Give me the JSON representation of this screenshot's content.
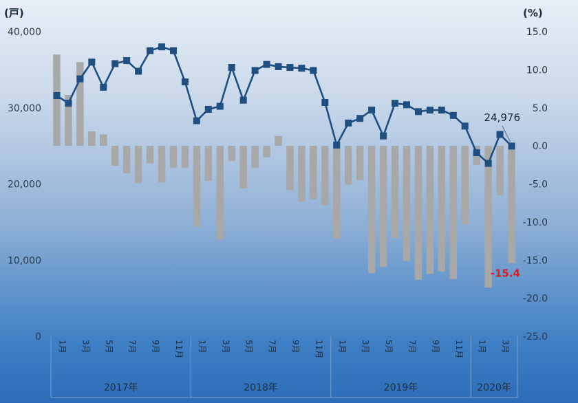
{
  "chart_data": {
    "type": "bar+line",
    "categories": [
      "2017-01",
      "2017-02",
      "2017-03",
      "2017-04",
      "2017-05",
      "2017-06",
      "2017-07",
      "2017-08",
      "2017-09",
      "2017-10",
      "2017-11",
      "2017-12",
      "2018-01",
      "2018-02",
      "2018-03",
      "2018-04",
      "2018-05",
      "2018-06",
      "2018-07",
      "2018-08",
      "2018-09",
      "2018-10",
      "2018-11",
      "2018-12",
      "2019-01",
      "2019-02",
      "2019-03",
      "2019-04",
      "2019-05",
      "2019-06",
      "2019-07",
      "2019-08",
      "2019-09",
      "2019-10",
      "2019-11",
      "2019-12",
      "2020-01",
      "2020-02",
      "2020-03",
      "2020-04"
    ],
    "x_month_labels": [
      "1月",
      "",
      "3月",
      "",
      "5月",
      "",
      "7月",
      "",
      "9月",
      "",
      "11月",
      "",
      "1月",
      "",
      "3月",
      "",
      "5月",
      "",
      "7月",
      "",
      "9月",
      "",
      "11月",
      "",
      "1月",
      "",
      "3月",
      "",
      "5月",
      "",
      "7月",
      "",
      "9月",
      "",
      "11月",
      "",
      "1月",
      "",
      "3月",
      ""
    ],
    "years": [
      {
        "label": "2017年",
        "start": 0,
        "count": 12
      },
      {
        "label": "2018年",
        "start": 12,
        "count": 12
      },
      {
        "label": "2019年",
        "start": 24,
        "count": 12
      },
      {
        "label": "2020年",
        "start": 36,
        "count": 4
      }
    ],
    "series": [
      {
        "role": "bar",
        "axis": "right",
        "color": "#a8a8a8",
        "values": [
          12.0,
          6.7,
          11.0,
          1.9,
          1.5,
          -2.6,
          -3.6,
          -4.9,
          -2.3,
          -4.8,
          -2.9,
          -2.9,
          -10.6,
          -4.6,
          -12.3,
          -2.0,
          -5.6,
          -2.9,
          -1.5,
          1.3,
          -5.8,
          -7.3,
          -7.0,
          -7.8,
          -12.2,
          -5.1,
          -4.5,
          -16.7,
          -15.9,
          -12.1,
          -15.1,
          -17.6,
          -16.8,
          -16.5,
          -17.5,
          -10.3,
          -2.5,
          -18.6,
          -6.5,
          -15.4
        ]
      },
      {
        "role": "line",
        "axis": "left",
        "color": "#1f4e80",
        "values": [
          31600,
          30600,
          33800,
          36000,
          32700,
          35800,
          36200,
          34800,
          37500,
          38000,
          37500,
          33400,
          28300,
          29800,
          30200,
          35300,
          31000,
          34900,
          35700,
          35400,
          35300,
          35200,
          34900,
          30700,
          25100,
          28000,
          28600,
          29700,
          26300,
          30600,
          30400,
          29500,
          29700,
          29700,
          29000,
          27600,
          24100,
          22700,
          26500,
          24976
        ]
      }
    ],
    "y_left": {
      "unit": "(戸)",
      "ticks": [
        "40,000",
        "30,000",
        "20,000",
        "10,000",
        "0"
      ],
      "min": 0,
      "max": 40000
    },
    "y_right": {
      "unit": "(%)",
      "ticks": [
        "15.0",
        "10.0",
        "5.0",
        "0.0",
        "-5.0",
        "-10.0",
        "-15.0",
        "-20.0",
        "-25.0"
      ],
      "min": -25,
      "max": 15
    },
    "annotations": [
      {
        "text": "24,976",
        "series": "line",
        "index": 39
      },
      {
        "text": "-15.4",
        "series": "bar",
        "index": 39,
        "color": "#e8151b"
      }
    ]
  }
}
